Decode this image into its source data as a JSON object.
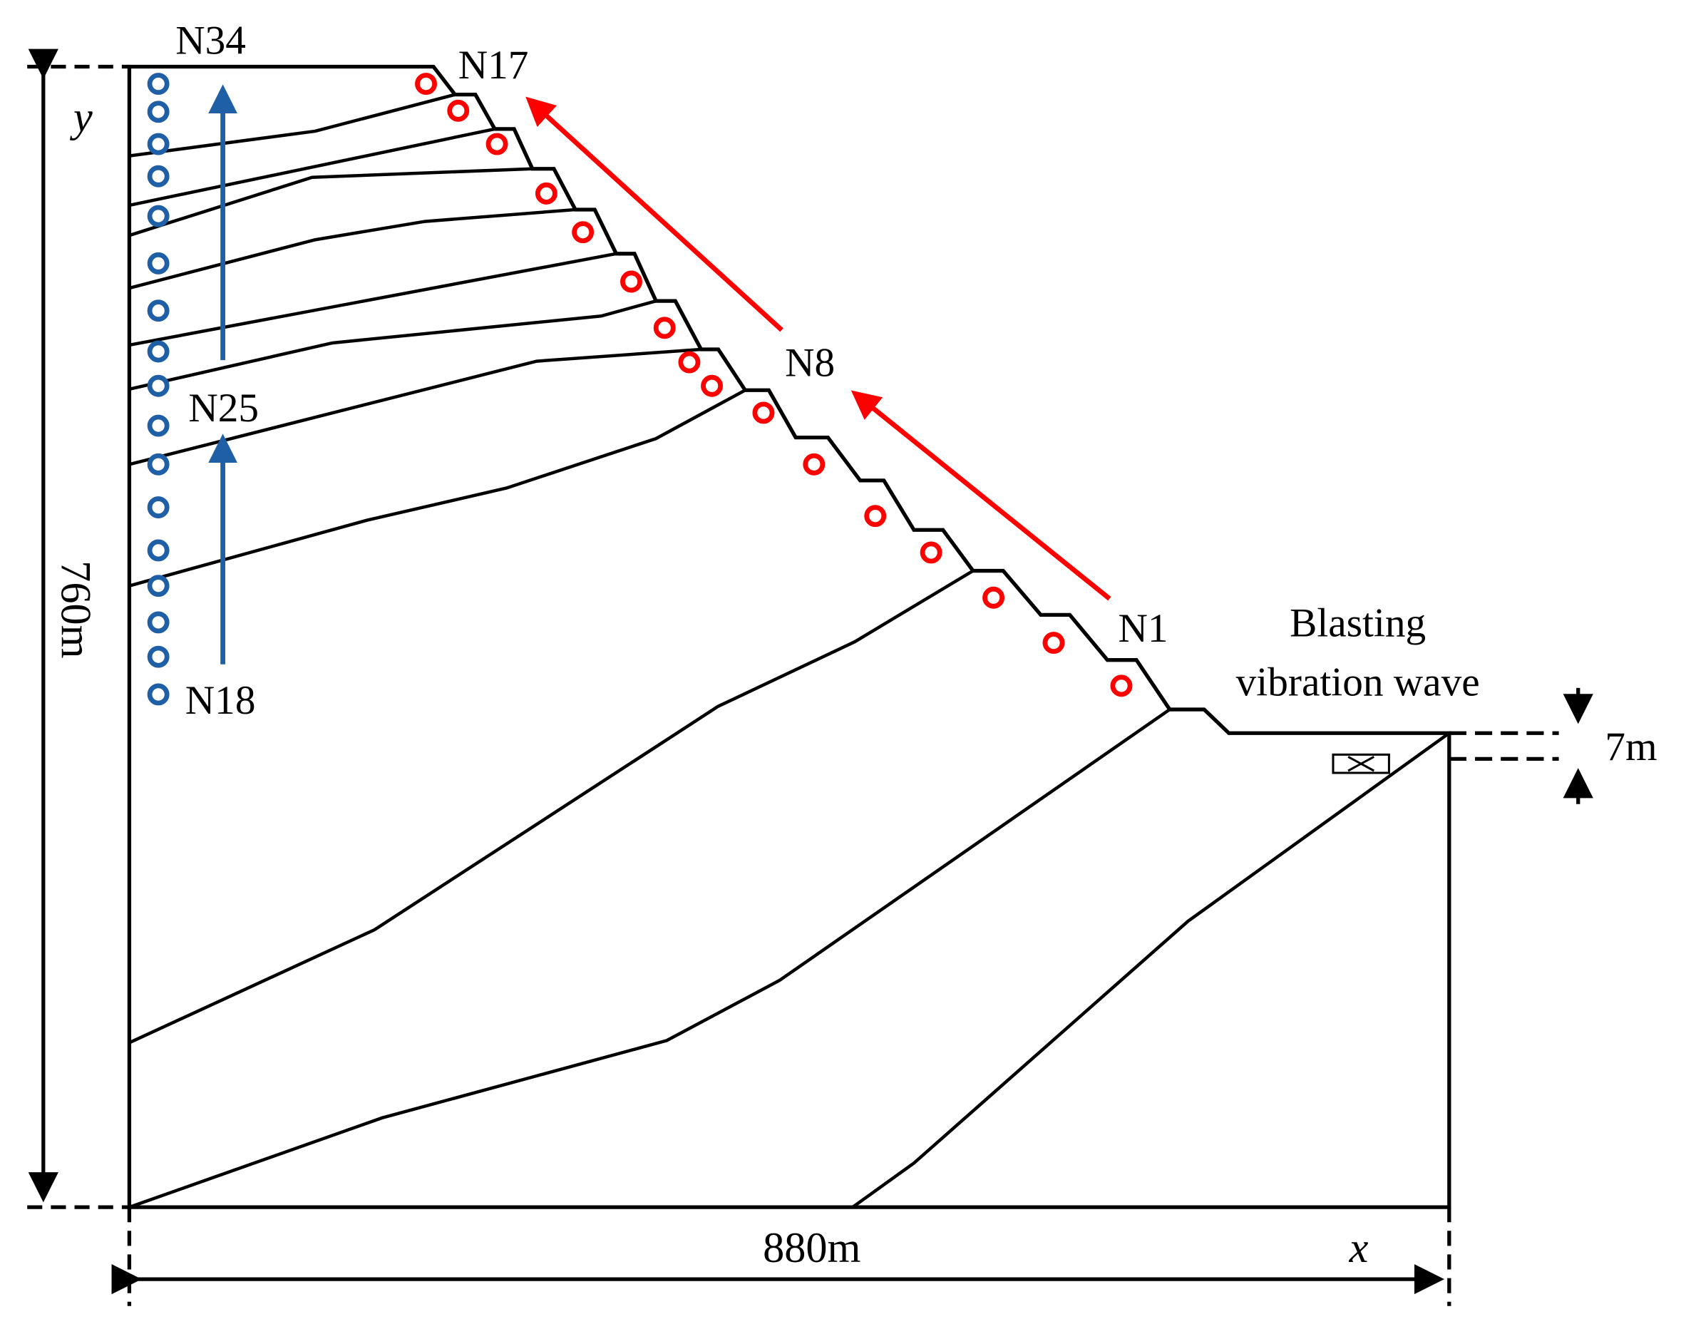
{
  "labels": {
    "n34": "N34",
    "n17": "N17",
    "n8": "N8",
    "n1": "N1",
    "n25": "N25",
    "n18": "N18",
    "blasting_line1": "Blasting",
    "blasting_line2": "vibration wave",
    "depth": "7m",
    "height": "760m",
    "width": "880m",
    "x_axis": "x",
    "y_axis": "y"
  },
  "colors": {
    "outline": "#000000",
    "slope_monitor": "#ff0000",
    "vertical_monitor": "#1f5fa6"
  },
  "monitoring_points": {
    "slope_count": 16,
    "vertical_count": 17
  }
}
